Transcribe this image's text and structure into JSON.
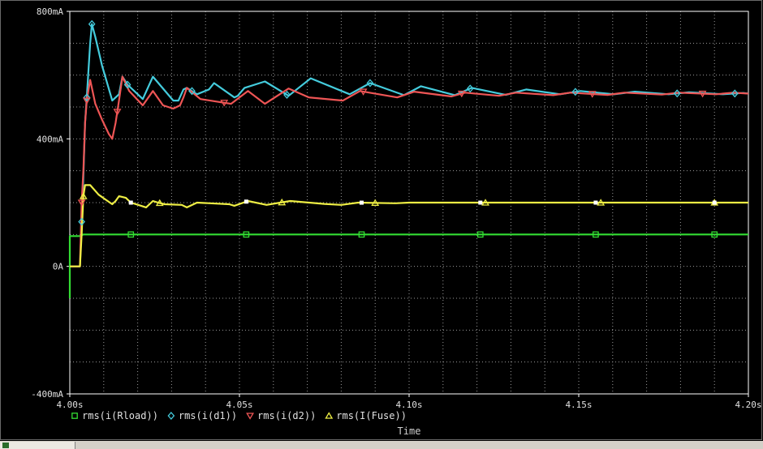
{
  "chart_data": {
    "type": "line",
    "title": "",
    "xlabel": "Time",
    "ylabel": "",
    "xlim": [
      4.0,
      4.2
    ],
    "ylim": [
      -0.4,
      0.8
    ],
    "x_ticks": [
      4.0,
      4.05,
      4.1,
      4.15,
      4.2
    ],
    "x_tick_labels": [
      "4.00s",
      "4.05s",
      "4.10s",
      "4.15s",
      "4.20s"
    ],
    "y_ticks": [
      -0.4,
      0.0,
      0.4,
      0.8
    ],
    "y_tick_labels": [
      "-400mA",
      "0A",
      "400mA",
      "800mA"
    ],
    "grid": true,
    "background": "#000000",
    "legend_position": "bottom-left",
    "series": [
      {
        "name": "rms(i(Rload))",
        "color": "#33dd33",
        "marker": "square",
        "points": [
          [
            4.0,
            -0.1
          ],
          [
            4.0,
            0.095
          ],
          [
            4.003,
            0.095
          ],
          [
            4.004,
            0.1
          ],
          [
            4.2,
            0.1
          ]
        ],
        "marker_x": [
          4.018,
          4.052,
          4.086,
          4.121,
          4.155,
          4.19
        ]
      },
      {
        "name": "rms(i(d1))",
        "color": "#44ccdd",
        "marker": "diamond",
        "points": [
          [
            4.0,
            0.0
          ],
          [
            4.003,
            0.0
          ],
          [
            4.004,
            0.28
          ],
          [
            4.0045,
            0.45
          ],
          [
            4.005,
            0.53
          ],
          [
            4.006,
            0.7
          ],
          [
            4.0065,
            0.76
          ],
          [
            4.0075,
            0.72
          ],
          [
            4.0095,
            0.63
          ],
          [
            4.0125,
            0.52
          ],
          [
            4.0145,
            0.54
          ],
          [
            4.0155,
            0.595
          ],
          [
            4.017,
            0.57
          ],
          [
            4.0215,
            0.525
          ],
          [
            4.0245,
            0.595
          ],
          [
            4.0305,
            0.52
          ],
          [
            4.032,
            0.52
          ],
          [
            4.0335,
            0.555
          ],
          [
            4.0345,
            0.56
          ],
          [
            4.0375,
            0.54
          ],
          [
            4.041,
            0.555
          ],
          [
            4.0425,
            0.575
          ],
          [
            4.0485,
            0.53
          ],
          [
            4.0495,
            0.535
          ],
          [
            4.0515,
            0.56
          ],
          [
            4.0575,
            0.58
          ],
          [
            4.0645,
            0.535
          ],
          [
            4.071,
            0.59
          ],
          [
            4.0825,
            0.54
          ],
          [
            4.0885,
            0.575
          ],
          [
            4.0985,
            0.537
          ],
          [
            4.1035,
            0.565
          ],
          [
            4.1135,
            0.537
          ],
          [
            4.1185,
            0.56
          ],
          [
            4.1285,
            0.538
          ],
          [
            4.1345,
            0.555
          ],
          [
            4.1445,
            0.54
          ],
          [
            4.1505,
            0.55
          ],
          [
            4.1605,
            0.54
          ],
          [
            4.1665,
            0.548
          ],
          [
            4.1765,
            0.54
          ],
          [
            4.1825,
            0.546
          ],
          [
            4.1925,
            0.54
          ],
          [
            4.1985,
            0.544
          ],
          [
            4.2,
            0.542
          ]
        ],
        "marker_x": [
          4.0035,
          4.005,
          4.0065,
          4.017,
          4.036,
          4.064,
          4.0885,
          4.118,
          4.149,
          4.179,
          4.196
        ]
      },
      {
        "name": "rms(i(d2))",
        "color": "#ee5555",
        "marker": "triangle-down",
        "points": [
          [
            4.0,
            0.0
          ],
          [
            4.003,
            0.0
          ],
          [
            4.0035,
            0.2
          ],
          [
            4.004,
            0.3
          ],
          [
            4.0045,
            0.45
          ],
          [
            4.005,
            0.52
          ],
          [
            4.006,
            0.585
          ],
          [
            4.0075,
            0.51
          ],
          [
            4.0095,
            0.46
          ],
          [
            4.0115,
            0.415
          ],
          [
            4.0125,
            0.4
          ],
          [
            4.0135,
            0.45
          ],
          [
            4.0145,
            0.52
          ],
          [
            4.0155,
            0.595
          ],
          [
            4.0175,
            0.55
          ],
          [
            4.0215,
            0.505
          ],
          [
            4.0245,
            0.55
          ],
          [
            4.0275,
            0.505
          ],
          [
            4.0305,
            0.495
          ],
          [
            4.0325,
            0.505
          ],
          [
            4.0335,
            0.53
          ],
          [
            4.0345,
            0.56
          ],
          [
            4.0385,
            0.525
          ],
          [
            4.0475,
            0.51
          ],
          [
            4.0525,
            0.55
          ],
          [
            4.0575,
            0.51
          ],
          [
            4.0645,
            0.558
          ],
          [
            4.0705,
            0.53
          ],
          [
            4.0805,
            0.52
          ],
          [
            4.0855,
            0.55
          ],
          [
            4.0965,
            0.53
          ],
          [
            4.1015,
            0.548
          ],
          [
            4.1125,
            0.533
          ],
          [
            4.1165,
            0.545
          ],
          [
            4.1265,
            0.535
          ],
          [
            4.1315,
            0.545
          ],
          [
            4.1425,
            0.537
          ],
          [
            4.1475,
            0.545
          ],
          [
            4.1585,
            0.538
          ],
          [
            4.1635,
            0.545
          ],
          [
            4.1745,
            0.539
          ],
          [
            4.1795,
            0.545
          ],
          [
            4.1905,
            0.54
          ],
          [
            4.1955,
            0.545
          ],
          [
            4.2,
            0.542
          ]
        ],
        "marker_x": [
          4.0035,
          4.005,
          4.014,
          4.0455,
          4.0865,
          4.1155,
          4.154,
          4.1865
        ]
      },
      {
        "name": "rms(I(Fuse))",
        "color": "#eeee44",
        "marker": "triangle-up",
        "points": [
          [
            4.0,
            0.0
          ],
          [
            4.003,
            0.0
          ],
          [
            4.0035,
            0.1
          ],
          [
            4.004,
            0.22
          ],
          [
            4.0045,
            0.255
          ],
          [
            4.006,
            0.255
          ],
          [
            4.0085,
            0.225
          ],
          [
            4.0105,
            0.21
          ],
          [
            4.0125,
            0.195
          ],
          [
            4.0135,
            0.205
          ],
          [
            4.0145,
            0.22
          ],
          [
            4.0165,
            0.215
          ],
          [
            4.018,
            0.2
          ],
          [
            4.021,
            0.19
          ],
          [
            4.0225,
            0.185
          ],
          [
            4.0245,
            0.205
          ],
          [
            4.026,
            0.2
          ],
          [
            4.028,
            0.195
          ],
          [
            4.033,
            0.193
          ],
          [
            4.0345,
            0.185
          ],
          [
            4.0375,
            0.2
          ],
          [
            4.047,
            0.195
          ],
          [
            4.0485,
            0.19
          ],
          [
            4.0525,
            0.205
          ],
          [
            4.058,
            0.193
          ],
          [
            4.062,
            0.2
          ],
          [
            4.065,
            0.205
          ],
          [
            4.075,
            0.196
          ],
          [
            4.08,
            0.193
          ],
          [
            4.085,
            0.2
          ],
          [
            4.096,
            0.198
          ],
          [
            4.1,
            0.2
          ],
          [
            4.2,
            0.2
          ]
        ],
        "marker_x": [
          4.004,
          4.0265,
          4.0625,
          4.09,
          4.1225,
          4.1565,
          4.19
        ]
      }
    ],
    "white_squares_x": [
      4.018,
      4.052,
      4.086,
      4.121,
      4.155,
      4.19
    ]
  }
}
